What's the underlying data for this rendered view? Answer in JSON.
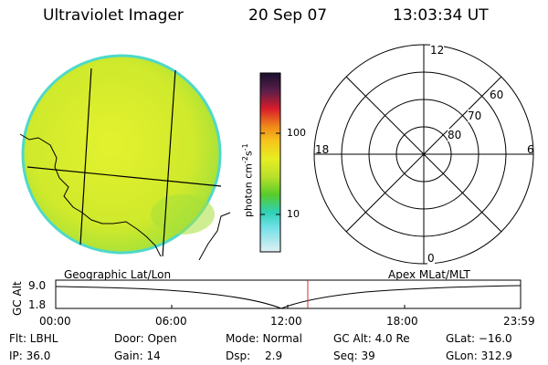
{
  "header": {
    "title": "Ultraviolet Imager",
    "date": "20 Sep 07",
    "time": "13:03:34 UT"
  },
  "colorbar": {
    "unit_label": "photon cm",
    "unit_exp1": "-2",
    "unit_mid": "s",
    "unit_exp2": "-1",
    "ticks": [
      "100",
      "10"
    ]
  },
  "polar_plot": {
    "mlt_labels": {
      "top": "12",
      "left": "18",
      "right": "6",
      "bottom": "0"
    },
    "lat_labels": [
      "60",
      "70",
      "80"
    ]
  },
  "panel_labels": {
    "left": "Geographic Lat/Lon",
    "right": "Apex MLat/MLT"
  },
  "altitude_plot": {
    "axis_label": "GC Alt",
    "y_ticks": [
      "9.0",
      "1.8"
    ],
    "x_ticks": [
      "00:00",
      "06:00",
      "12:00",
      "18:00",
      "23:59"
    ]
  },
  "status": {
    "flt": "Flt: LBHL",
    "door": "Door: Open",
    "mode": "Mode: Normal",
    "gc_alt": "GC Alt: 4.0 Re",
    "glat": "GLat: −16.0",
    "ip": "IP: 36.0",
    "gain": "Gain: 14",
    "dsp_label": "Dsp:",
    "dsp_value": "2.9",
    "seq": "Seq: 39",
    "glon": "GLon: 312.9"
  },
  "colors": {
    "disk_fill": "#d8ef2a",
    "disk_edge": "#4ed9c9",
    "marker_line": "#cc3333"
  }
}
